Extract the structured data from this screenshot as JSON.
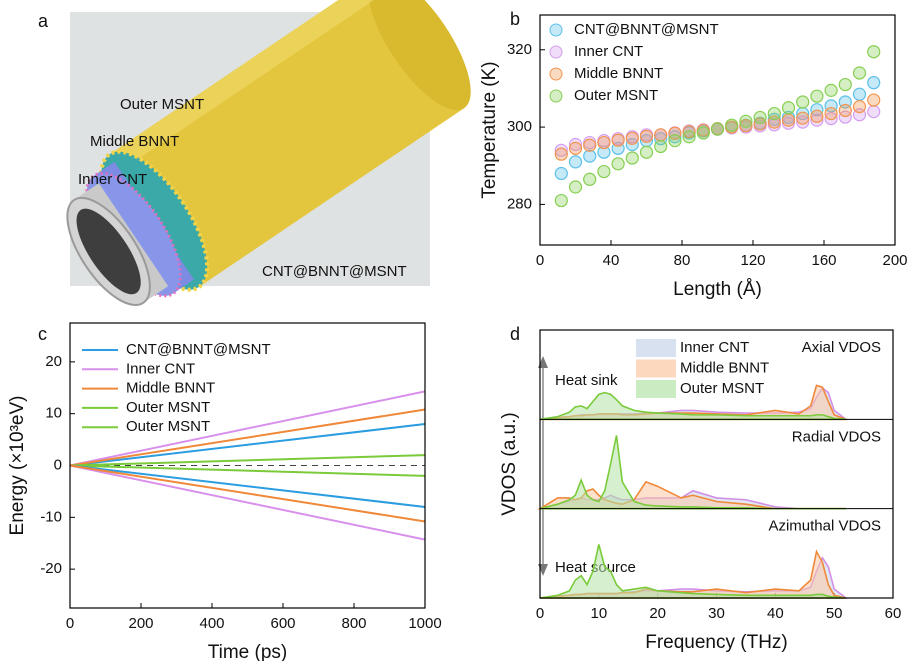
{
  "illustration": {
    "panel": "a",
    "labels": [
      "Outer MSNT",
      "Middle BNNT",
      "Inner CNT"
    ],
    "caption": "CNT@BNNT@MSNT"
  },
  "chart_data": [
    {
      "type": "scatter",
      "panel": "b",
      "xlabel": "Length (Å)",
      "ylabel": "Temperature (K)",
      "xlim": [
        0,
        200
      ],
      "xticks": [
        0,
        40,
        80,
        120,
        160,
        200
      ],
      "ylim": [
        269.5,
        329
      ],
      "yticks": [
        280,
        300,
        320
      ],
      "x": [
        12,
        20,
        28,
        36,
        44,
        52,
        60,
        68,
        76,
        84,
        92,
        100,
        108,
        116,
        124,
        132,
        140,
        148,
        156,
        164,
        172,
        180,
        188
      ],
      "series": [
        {
          "name": "CNT@BNNT@MSNT",
          "color": "#5bc0e8",
          "values": [
            288,
            291,
            292.5,
            293.5,
            294.5,
            295.5,
            296.5,
            297,
            297.5,
            298.5,
            299,
            299.5,
            300,
            300.5,
            301,
            302,
            302.5,
            303.5,
            304.5,
            305.5,
            306.5,
            308.5,
            311.5
          ]
        },
        {
          "name": "Inner CNT",
          "color": "#d39ef0",
          "values": [
            294,
            295.5,
            296,
            296.5,
            297,
            297.5,
            298,
            298,
            298.5,
            299,
            299.3,
            299.5,
            299.8,
            300,
            300.3,
            300.6,
            301,
            301.3,
            301.8,
            302.2,
            302.6,
            303.2,
            304
          ]
        },
        {
          "name": "Middle BNNT",
          "color": "#f2954e",
          "values": [
            293,
            294.5,
            295.3,
            296,
            296.6,
            297.1,
            297.6,
            298,
            298.4,
            298.8,
            299.2,
            299.6,
            300,
            300.4,
            300.8,
            301.3,
            301.8,
            302.3,
            302.8,
            303.5,
            304.3,
            305.3,
            307
          ]
        },
        {
          "name": "Outer MSNT",
          "color": "#86cf52",
          "values": [
            281,
            284.5,
            286.5,
            288.5,
            290.5,
            292,
            293.5,
            295,
            296.5,
            297.5,
            298.5,
            299.5,
            300.5,
            301.5,
            302.5,
            303.5,
            305,
            306.5,
            308,
            309.5,
            311,
            314,
            319.5
          ]
        }
      ]
    },
    {
      "type": "line",
      "panel": "c",
      "xlabel": "Time (ps)",
      "ylabel": "Energy (×10³eV)",
      "xlim": [
        0,
        1000
      ],
      "xticks": [
        0,
        200,
        400,
        600,
        800,
        1000
      ],
      "ylim": [
        -27.5,
        27.5
      ],
      "yticks": [
        -20,
        -10,
        0,
        10,
        20
      ],
      "annotations": [
        "Heat sink",
        "Heat source"
      ],
      "series": [
        {
          "name": "CNT@BNNT@MSNT",
          "color": "#2b9de0",
          "x": [
            0,
            1000
          ],
          "values": [
            0,
            8
          ]
        },
        {
          "name": "Inner CNT",
          "color": "#d890ec",
          "x": [
            0,
            1000
          ],
          "values": [
            0,
            14.3
          ]
        },
        {
          "name": "Middle BNNT",
          "color": "#f0883a",
          "x": [
            0,
            1000
          ],
          "values": [
            0,
            10.8
          ]
        },
        {
          "name": "Outer MSNT",
          "color": "#7acb3a",
          "x": [
            0,
            1000
          ],
          "values": [
            0,
            2
          ]
        },
        {
          "name": "Outer MSNT",
          "color": "#7acb3a",
          "x": [
            0,
            1000
          ],
          "values": [
            0,
            -2
          ]
        },
        {
          "color": "#2b9de0",
          "x": [
            0,
            1000
          ],
          "values": [
            0,
            -8
          ]
        },
        {
          "color": "#d890ec",
          "x": [
            0,
            1000
          ],
          "values": [
            0,
            -14.3
          ]
        },
        {
          "color": "#f0883a",
          "x": [
            0,
            1000
          ],
          "values": [
            0,
            -10.8
          ]
        }
      ]
    },
    {
      "type": "area",
      "panel": "d",
      "xlabel": "Frequency (THz)",
      "ylabel": "VDOS (a.u.)",
      "xlim": [
        0,
        60
      ],
      "xticks": [
        0,
        10,
        20,
        30,
        40,
        50,
        60
      ],
      "ylim": [
        0,
        1
      ],
      "x": [
        0,
        3,
        5,
        6,
        7,
        8,
        9,
        10,
        11,
        12,
        13,
        14,
        16,
        18,
        20,
        24,
        26,
        30,
        35,
        40,
        44,
        46,
        47,
        48,
        49,
        50,
        52
      ],
      "subplots": [
        {
          "title": "Axial VDOS",
          "series": [
            {
              "name": "Inner CNT",
              "color": "#d090e8",
              "fill": "#c8d4ea",
              "values": [
                0,
                0.02,
                0.03,
                0.04,
                0.05,
                0.05,
                0.05,
                0.06,
                0.06,
                0.06,
                0.06,
                0.06,
                0.06,
                0.07,
                0.07,
                0.1,
                0.1,
                0.08,
                0.07,
                0.07,
                0.08,
                0.12,
                0.25,
                0.35,
                0.3,
                0.1,
                0
              ]
            },
            {
              "name": "Middle BNNT",
              "color": "#f0883a",
              "fill": "#fbc8a4",
              "values": [
                0,
                0.02,
                0.03,
                0.04,
                0.04,
                0.05,
                0.05,
                0.06,
                0.06,
                0.06,
                0.06,
                0.05,
                0.05,
                0.06,
                0.07,
                0.07,
                0.07,
                0.06,
                0.05,
                0.1,
                0.06,
                0.15,
                0.38,
                0.36,
                0.2,
                0.05,
                0
              ]
            },
            {
              "name": "Outer MSNT",
              "color": "#7acb3a",
              "fill": "#b4e4a8",
              "values": [
                0,
                0.03,
                0.08,
                0.14,
                0.15,
                0.12,
                0.2,
                0.28,
                0.3,
                0.28,
                0.22,
                0.15,
                0.1,
                0.08,
                0.07,
                0.06,
                0.05,
                0.05,
                0.04,
                0.04,
                0.04,
                0.04,
                0.05,
                0.05,
                0.03,
                0.01,
                0
              ]
            }
          ]
        },
        {
          "title": "Radial VDOS",
          "series": [
            {
              "name": "Inner CNT",
              "color": "#d090e8",
              "fill": "#c8d4ea",
              "values": [
                0,
                0.05,
                0.08,
                0.1,
                0.12,
                0.1,
                0.1,
                0.1,
                0.12,
                0.15,
                0.12,
                0.1,
                0.1,
                0.12,
                0.12,
                0.12,
                0.2,
                0.12,
                0.1,
                0.02,
                0,
                0,
                0,
                0,
                0,
                0,
                0
              ]
            },
            {
              "name": "Middle BNNT",
              "color": "#f0883a",
              "fill": "#fbc8a4",
              "values": [
                0,
                0.12,
                0.12,
                0.1,
                0.12,
                0.2,
                0.22,
                0.15,
                0.1,
                0.08,
                0.06,
                0.05,
                0.1,
                0.3,
                0.25,
                0.12,
                0.15,
                0.08,
                0.05,
                0,
                0,
                0,
                0,
                0,
                0,
                0,
                0
              ]
            },
            {
              "name": "Outer MSNT",
              "color": "#7acb3a",
              "fill": "#b4e4a8",
              "values": [
                0,
                0.05,
                0.1,
                0.15,
                0.32,
                0.15,
                0.1,
                0.08,
                0.2,
                0.5,
                0.82,
                0.3,
                0.08,
                0.04,
                0.03,
                0.02,
                0.02,
                0.01,
                0.01,
                0,
                0,
                0,
                0,
                0,
                0,
                0,
                0
              ]
            }
          ]
        },
        {
          "title": "Azimuthal VDOS",
          "series": [
            {
              "name": "Inner CNT",
              "color": "#d090e8",
              "fill": "#c8d4ea",
              "values": [
                0,
                0.02,
                0.03,
                0.04,
                0.04,
                0.05,
                0.05,
                0.05,
                0.05,
                0.05,
                0.05,
                0.06,
                0.07,
                0.08,
                0.08,
                0.1,
                0.1,
                0.08,
                0.07,
                0.08,
                0.08,
                0.12,
                0.3,
                0.45,
                0.35,
                0.1,
                0
              ]
            },
            {
              "name": "Middle BNNT",
              "color": "#f0883a",
              "fill": "#fbc8a4",
              "values": [
                0,
                0.02,
                0.03,
                0.04,
                0.04,
                0.05,
                0.05,
                0.05,
                0.05,
                0.05,
                0.05,
                0.06,
                0.06,
                0.1,
                0.08,
                0.07,
                0.07,
                0.1,
                0.06,
                0.1,
                0.08,
                0.2,
                0.52,
                0.4,
                0.15,
                0.03,
                0
              ]
            },
            {
              "name": "Outer MSNT",
              "color": "#7acb3a",
              "fill": "#b4e4a8",
              "values": [
                0,
                0.03,
                0.08,
                0.2,
                0.25,
                0.15,
                0.3,
                0.6,
                0.35,
                0.3,
                0.15,
                0.08,
                0.1,
                0.12,
                0.08,
                0.06,
                0.05,
                0.04,
                0.03,
                0.03,
                0.03,
                0.03,
                0.04,
                0.04,
                0.02,
                0.01,
                0
              ]
            }
          ]
        }
      ]
    }
  ]
}
